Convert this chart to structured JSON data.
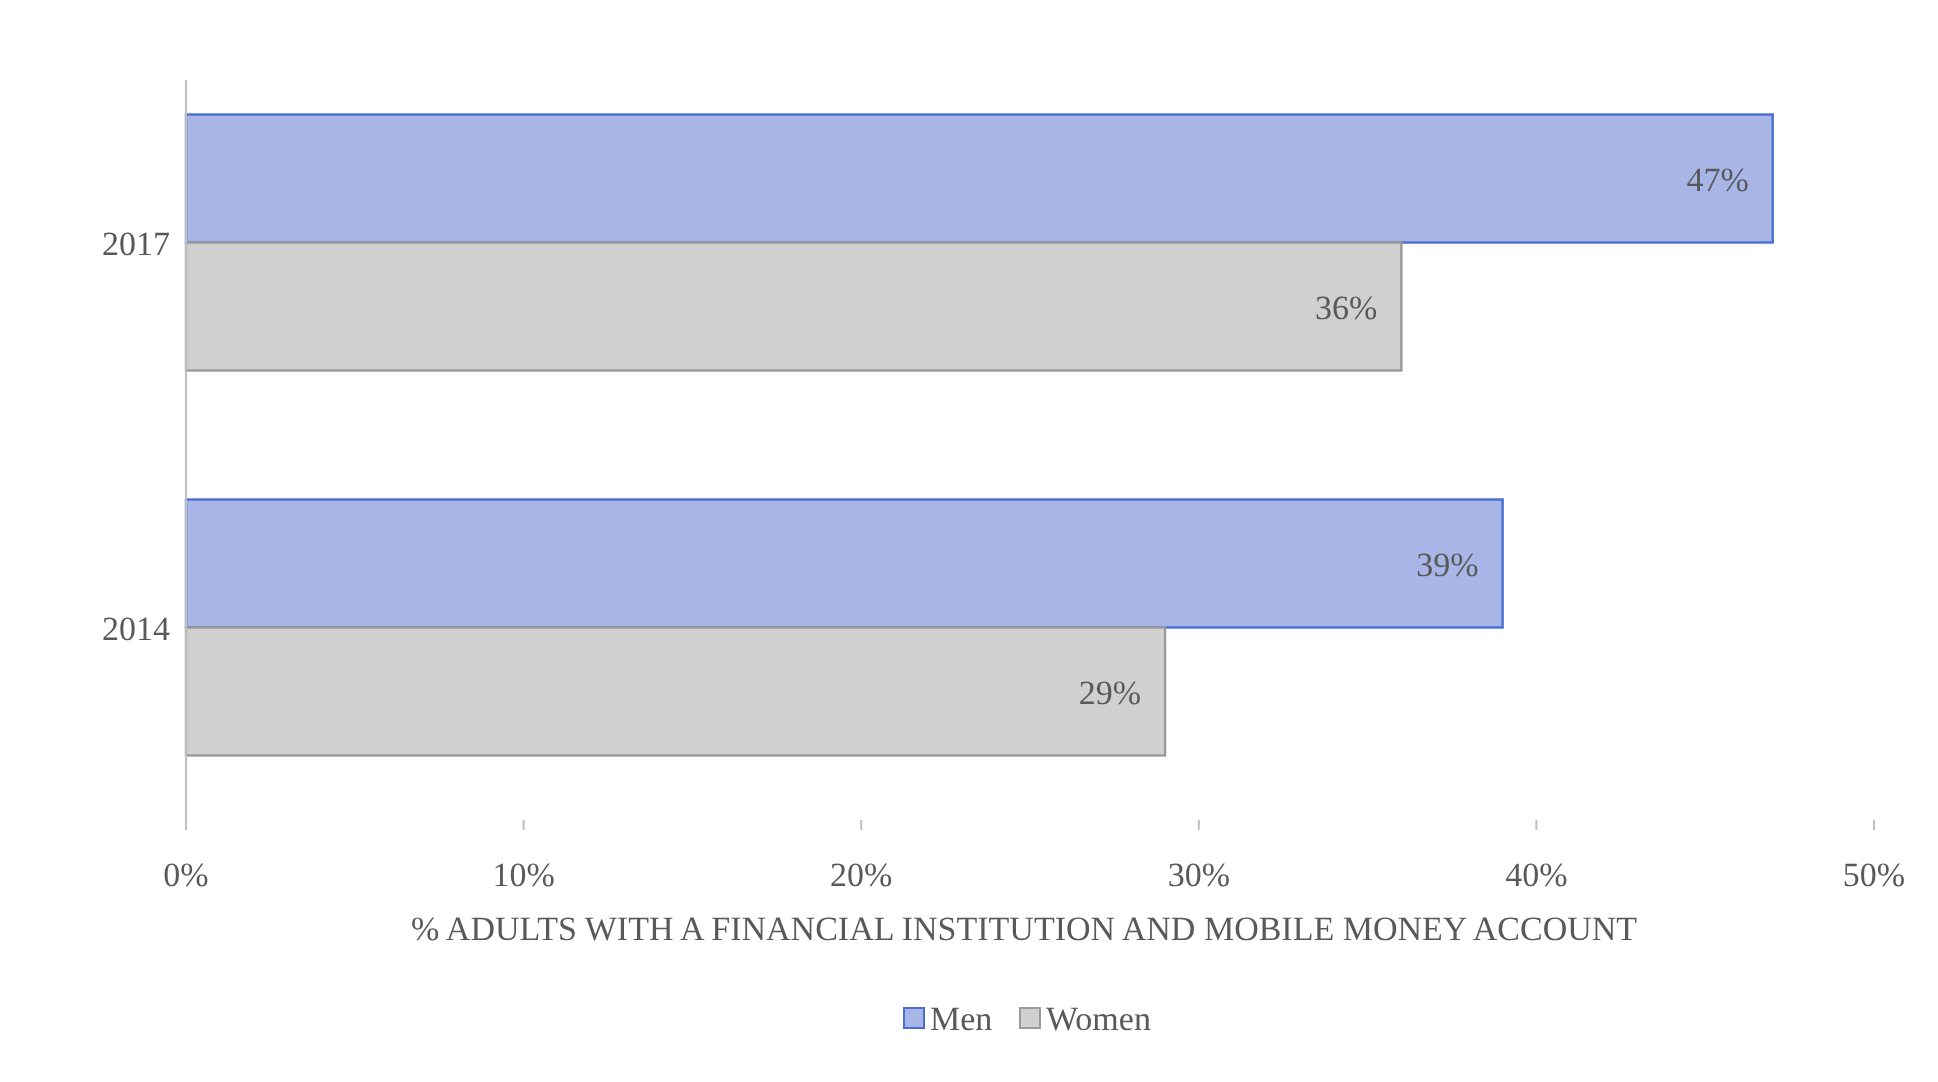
{
  "chart_data": {
    "type": "bar",
    "orientation": "horizontal",
    "xlabel": "% ADULTS WITH A FINANCIAL INSTITUTION AND MOBILE MONEY ACCOUNT",
    "categories": [
      "2017",
      "2014"
    ],
    "series": [
      {
        "name": "Men",
        "color": "#a7b6e6",
        "values": [
          47,
          39
        ],
        "value_labels": [
          "47%",
          "39%"
        ]
      },
      {
        "name": "Women",
        "color": "#d0d0d0",
        "values": [
          36,
          29
        ],
        "value_labels": [
          "36%",
          "29%"
        ]
      }
    ],
    "xlim": [
      0,
      50
    ],
    "xticks": [
      {
        "value": 0,
        "label": "0%"
      },
      {
        "value": 10,
        "label": "10%"
      },
      {
        "value": 20,
        "label": "20%"
      },
      {
        "value": 30,
        "label": "30%"
      },
      {
        "value": 40,
        "label": "40%"
      },
      {
        "value": 50,
        "label": "50%"
      }
    ],
    "legend": "bottom",
    "grid": false
  }
}
